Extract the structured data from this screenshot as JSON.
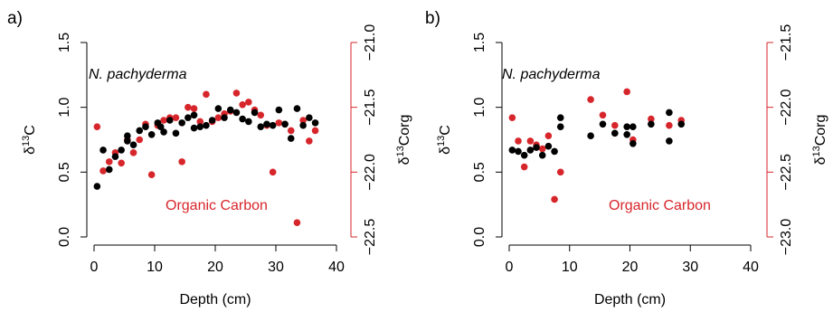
{
  "colors": {
    "black_series": "#000000",
    "red_series": "#d7262b",
    "text": "#000000"
  },
  "chart_data": [
    {
      "type": "scatter",
      "panel_label": "a)",
      "xlabel": "Depth (cm)",
      "xlim": [
        0,
        40
      ],
      "xticks": [
        "0",
        "10",
        "20",
        "30",
        "40"
      ],
      "ylabel_left": {
        "prefix": "δ",
        "sup": "13",
        "suffix": "C"
      },
      "ylim_left": [
        0.0,
        1.5
      ],
      "yticks_left": [
        "0.0",
        "0.5",
        "1.0",
        "1.5"
      ],
      "ylabel_right": {
        "prefix": "δ",
        "sup": "13",
        "suffix": "Corg"
      },
      "ylim_right": [
        -22.5,
        -21.0
      ],
      "yticks_right": [
        "−22.5",
        "−22.0",
        "−21.5",
        "−21.0"
      ],
      "annotations": {
        "black": "N. pachyderma",
        "red": "Organic Carbon"
      },
      "series": [
        {
          "name": "N. pachyderma",
          "axis": "left",
          "color": "#000000",
          "points": [
            [
              0.5,
              0.39
            ],
            [
              1.5,
              0.67
            ],
            [
              2.5,
              0.52
            ],
            [
              3.5,
              0.62
            ],
            [
              4.5,
              0.67
            ],
            [
              5.5,
              0.78
            ],
            [
              6.5,
              0.71
            ],
            [
              7.5,
              0.82
            ],
            [
              8.5,
              0.85
            ],
            [
              9.5,
              0.79
            ],
            [
              10.5,
              0.88
            ],
            [
              11.5,
              0.81
            ],
            [
              12.5,
              0.9
            ],
            [
              13.5,
              0.8
            ],
            [
              14.5,
              0.88
            ],
            [
              15.5,
              0.92
            ],
            [
              16.5,
              0.84
            ],
            [
              17.5,
              0.85
            ],
            [
              18.5,
              0.86
            ],
            [
              19.5,
              0.9
            ],
            [
              20.5,
              0.99
            ],
            [
              21.5,
              0.92
            ],
            [
              22.5,
              0.98
            ],
            [
              23.5,
              0.96
            ],
            [
              24.5,
              0.91
            ],
            [
              25.5,
              0.89
            ],
            [
              26.5,
              0.96
            ],
            [
              27.5,
              0.85
            ],
            [
              28.5,
              0.87
            ],
            [
              29.5,
              0.86
            ],
            [
              30.5,
              0.98
            ],
            [
              31.5,
              0.87
            ],
            [
              32.5,
              0.76
            ],
            [
              33.5,
              0.99
            ],
            [
              34.5,
              0.86
            ],
            [
              35.5,
              0.92
            ],
            [
              36.5,
              0.88
            ],
            [
              16.5,
              0.94
            ],
            [
              11.0,
              0.85
            ],
            [
              5.5,
              0.74
            ]
          ]
        },
        {
          "name": "Organic Carbon",
          "axis": "right",
          "color": "#d7262b",
          "points": [
            [
              0.5,
              -21.65
            ],
            [
              1.5,
              -21.99
            ],
            [
              2.5,
              -21.92
            ],
            [
              3.5,
              -21.85
            ],
            [
              4.5,
              -21.93
            ],
            [
              5.5,
              -21.75
            ],
            [
              6.5,
              -21.85
            ],
            [
              7.5,
              -21.75
            ],
            [
              8.5,
              -21.63
            ],
            [
              9.5,
              -22.02
            ],
            [
              10.5,
              -21.64
            ],
            [
              11.5,
              -21.6
            ],
            [
              12.5,
              -21.58
            ],
            [
              13.5,
              -21.58
            ],
            [
              14.5,
              -21.92
            ],
            [
              15.5,
              -21.5
            ],
            [
              16.5,
              -21.51
            ],
            [
              17.5,
              -21.61
            ],
            [
              18.5,
              -21.4
            ],
            [
              19.5,
              -21.61
            ],
            [
              20.5,
              -21.58
            ],
            [
              21.5,
              -21.55
            ],
            [
              22.5,
              -21.53
            ],
            [
              23.5,
              -21.39
            ],
            [
              24.5,
              -21.48
            ],
            [
              25.5,
              -21.46
            ],
            [
              26.5,
              -21.52
            ],
            [
              27.5,
              -21.56
            ],
            [
              28.5,
              -21.64
            ],
            [
              29.5,
              -22.0
            ],
            [
              30.5,
              -21.62
            ],
            [
              31.5,
              -21.63
            ],
            [
              32.5,
              -21.68
            ],
            [
              33.5,
              -22.39
            ],
            [
              34.5,
              -21.6
            ],
            [
              35.5,
              -21.76
            ],
            [
              36.5,
              -21.68
            ]
          ]
        }
      ]
    },
    {
      "type": "scatter",
      "panel_label": "b)",
      "xlabel": "Depth (cm)",
      "xlim": [
        0,
        40
      ],
      "xticks": [
        "0",
        "10",
        "20",
        "30",
        "40"
      ],
      "ylabel_left": {
        "prefix": "δ",
        "sup": "13",
        "suffix": "C"
      },
      "ylim_left": [
        0.0,
        1.5
      ],
      "yticks_left": [
        "0.0",
        "0.5",
        "1.0",
        "1.5"
      ],
      "ylabel_right": {
        "prefix": "δ",
        "sup": "13",
        "suffix": "Corg"
      },
      "ylim_right": [
        -23.0,
        -21.5
      ],
      "yticks_right": [
        "−23.0",
        "−22.5",
        "−22.0",
        "−21.5"
      ],
      "annotations": {
        "black": "N. pachyderma",
        "red": "Organic Carbon"
      },
      "series": [
        {
          "name": "N. pachyderma",
          "axis": "left",
          "color": "#000000",
          "points": [
            [
              0.5,
              0.67
            ],
            [
              1.5,
              0.66
            ],
            [
              2.5,
              0.63
            ],
            [
              3.5,
              0.67
            ],
            [
              4.5,
              0.69
            ],
            [
              5.5,
              0.63
            ],
            [
              6.5,
              0.7
            ],
            [
              7.5,
              0.66
            ],
            [
              8.5,
              0.85
            ],
            [
              8.5,
              0.92
            ],
            [
              13.5,
              0.78
            ],
            [
              15.5,
              0.87
            ],
            [
              17.5,
              0.8
            ],
            [
              19.5,
              0.85
            ],
            [
              19.5,
              0.79
            ],
            [
              20.5,
              0.85
            ],
            [
              20.5,
              0.72
            ],
            [
              23.5,
              0.87
            ],
            [
              26.5,
              0.96
            ],
            [
              26.5,
              0.74
            ],
            [
              28.5,
              0.87
            ]
          ]
        },
        {
          "name": "Organic Carbon",
          "axis": "right",
          "color": "#d7262b",
          "points": [
            [
              0.5,
              -22.08
            ],
            [
              1.5,
              -22.26
            ],
            [
              2.5,
              -22.46
            ],
            [
              3.5,
              -22.26
            ],
            [
              4.5,
              -22.29
            ],
            [
              5.5,
              -22.32
            ],
            [
              6.5,
              -22.22
            ],
            [
              7.5,
              -22.71
            ],
            [
              8.5,
              -22.5
            ],
            [
              13.5,
              -21.94
            ],
            [
              15.5,
              -22.06
            ],
            [
              17.5,
              -22.14
            ],
            [
              19.5,
              -21.88
            ],
            [
              20.5,
              -22.25
            ],
            [
              23.5,
              -22.09
            ],
            [
              26.5,
              -22.14
            ],
            [
              28.5,
              -22.1
            ]
          ]
        }
      ]
    }
  ]
}
